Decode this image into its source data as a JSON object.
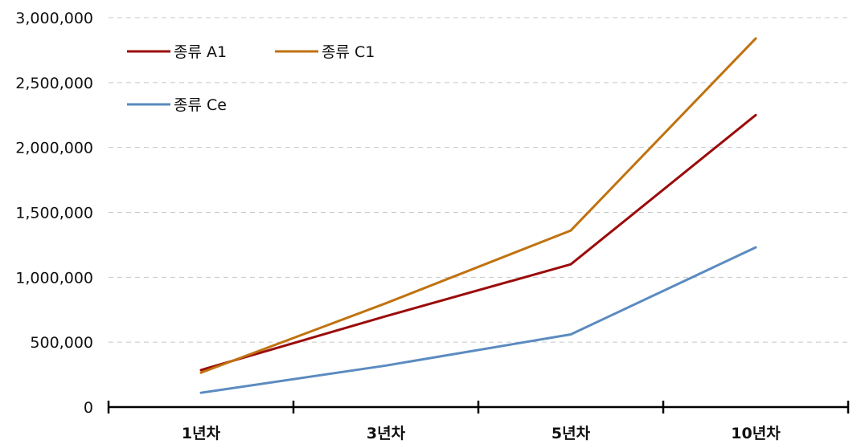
{
  "chart_data": {
    "type": "line",
    "categories": [
      "1년차",
      "3년차",
      "5년차",
      "10년차"
    ],
    "x_ticks": [
      "1년차",
      "3년차",
      "5년차",
      "10년차"
    ],
    "y_ticks": [
      "0",
      "500,000",
      "1,000,000",
      "1,500,000",
      "2,000,000",
      "2,500,000",
      "3,000,000"
    ],
    "ylim": [
      0,
      3000000
    ],
    "grid": true,
    "legend_position": "top-left",
    "series": [
      {
        "name": "종류 A1",
        "color": "#9b0b0b",
        "values": [
          285000,
          700000,
          1100000,
          2250000
        ]
      },
      {
        "name": "종류 C1",
        "color": "#c0720f",
        "values": [
          265000,
          800000,
          1360000,
          2840000
        ]
      },
      {
        "name": "종류 Ce",
        "color": "#5b8bc0",
        "values": [
          110000,
          320000,
          560000,
          1230000
        ]
      }
    ]
  }
}
